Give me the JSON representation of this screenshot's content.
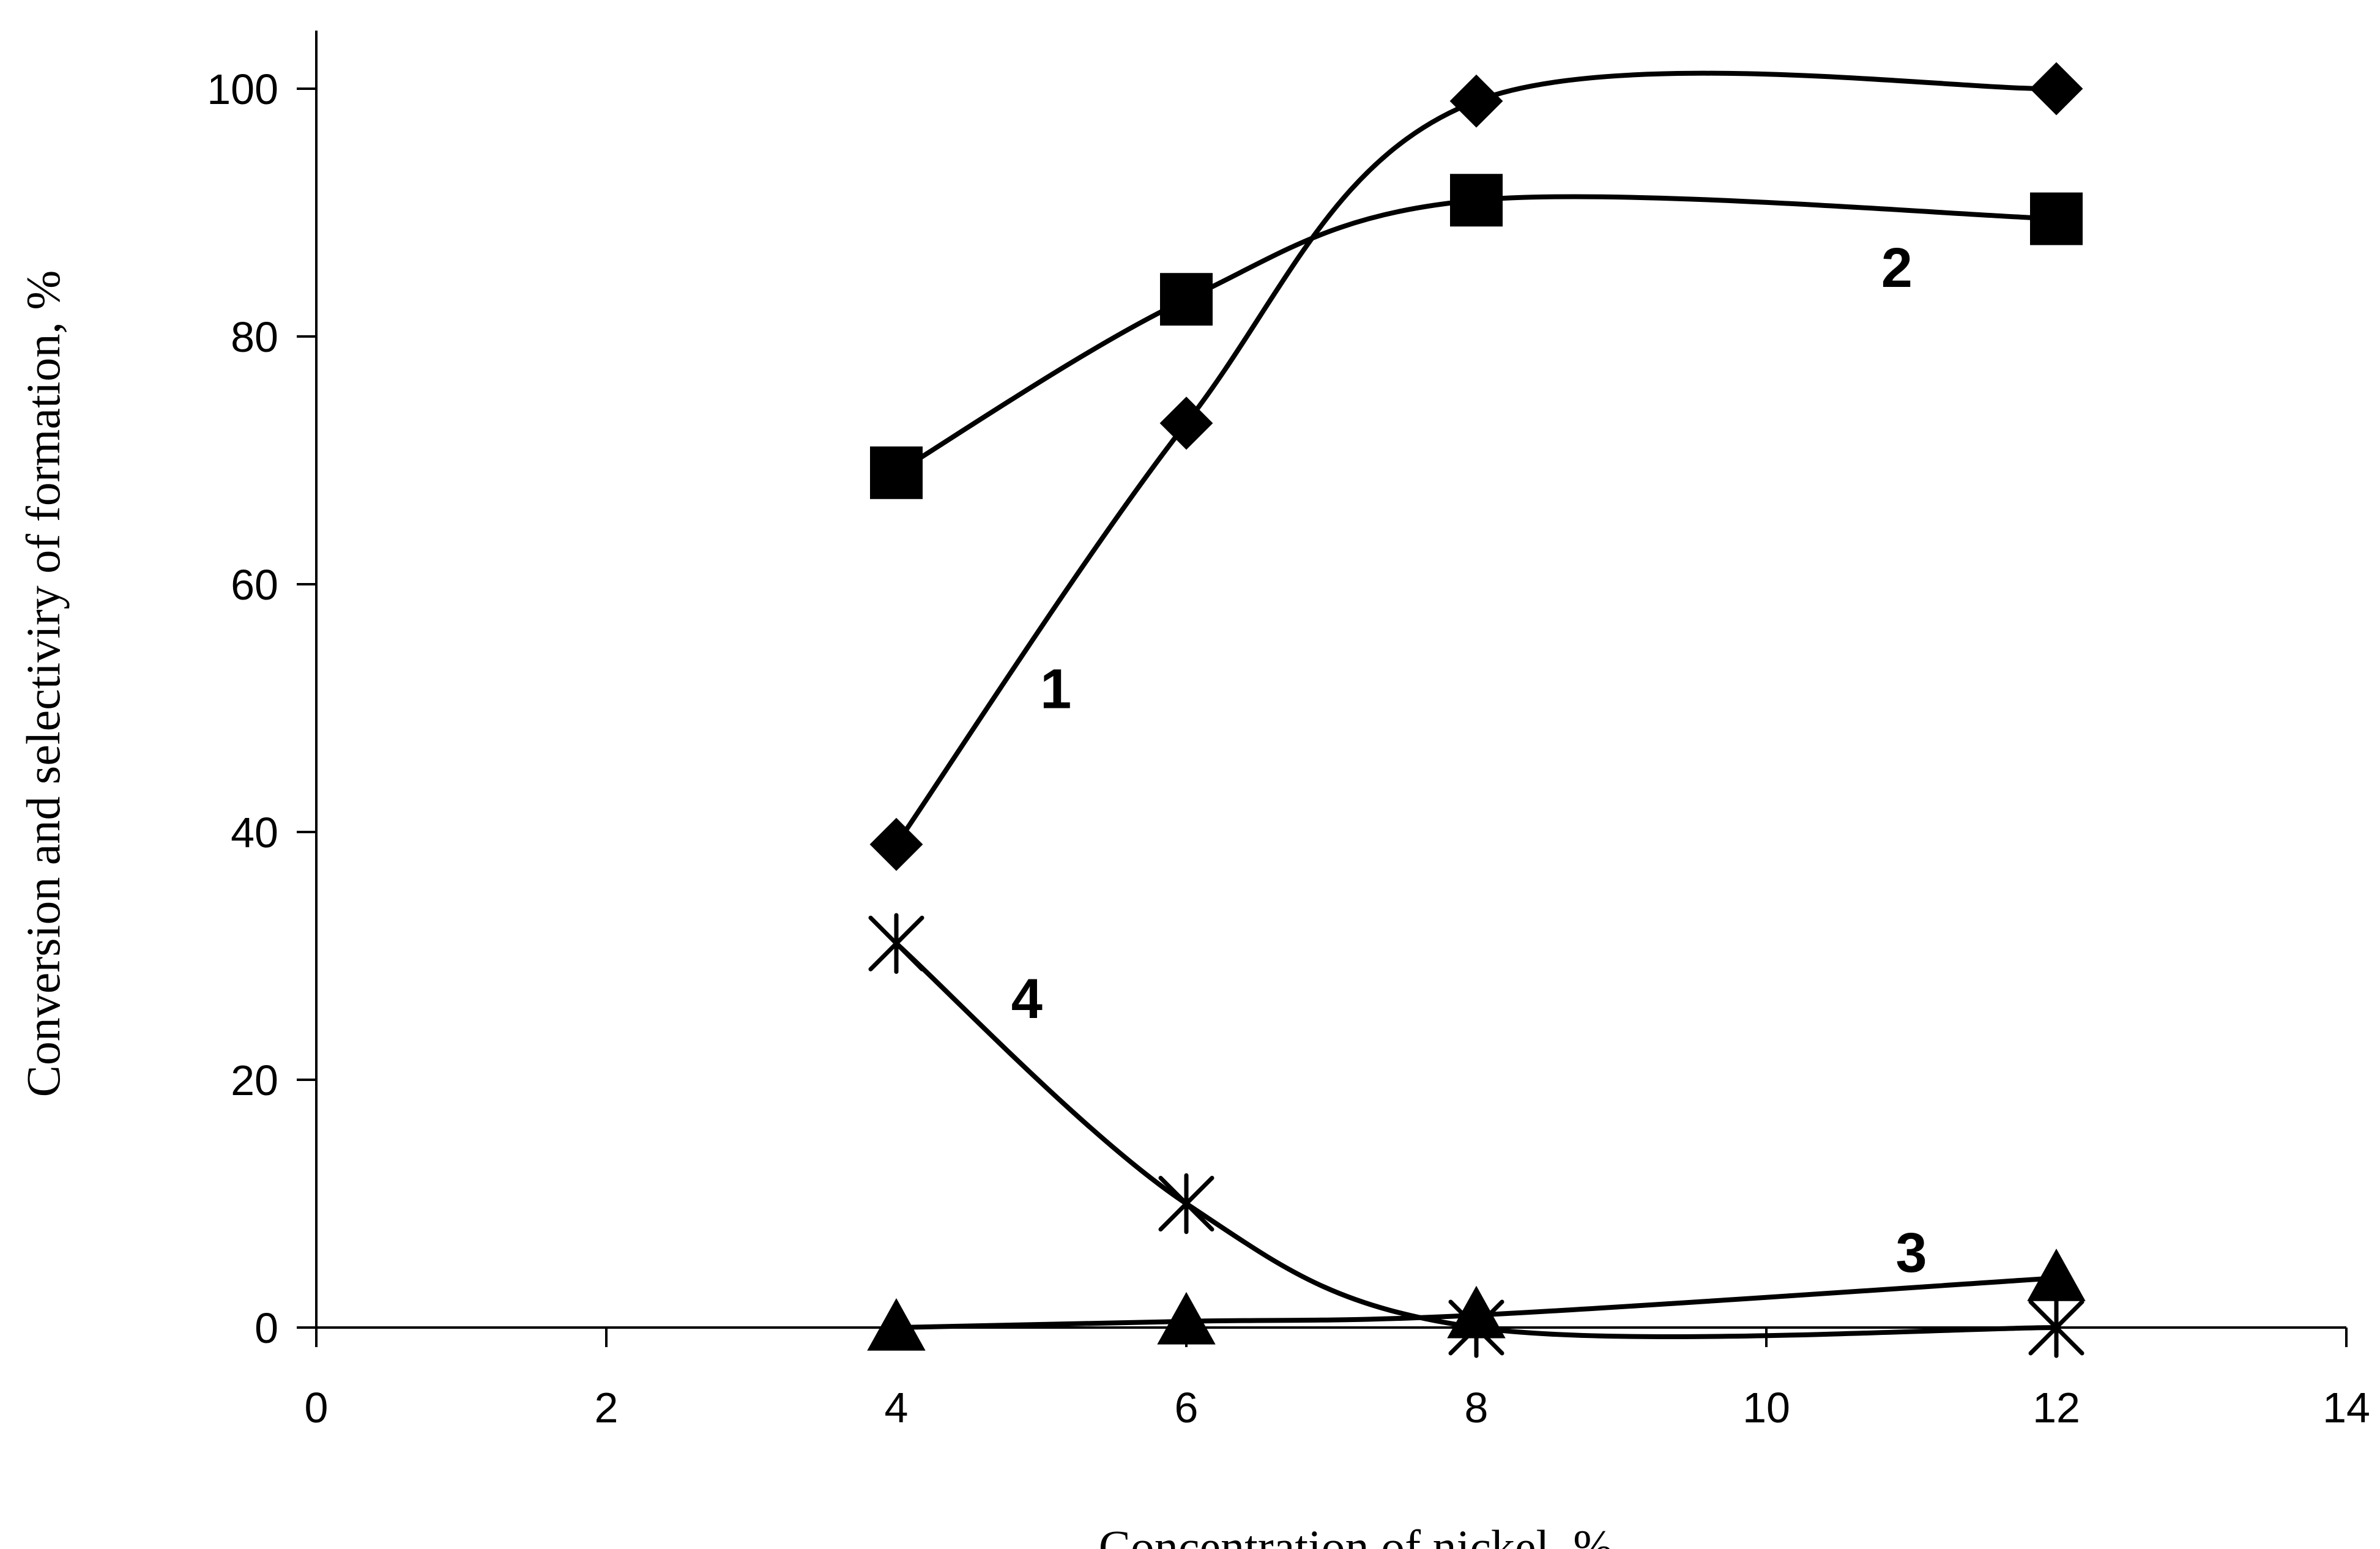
{
  "chart_data": {
    "type": "line",
    "title": "",
    "xlabel": "Concentration of nickel, %",
    "ylabel": "Conversion and selectiviry of formation, %",
    "xlim": [
      0,
      14
    ],
    "ylim": [
      0,
      100
    ],
    "x_ticks": [
      "0",
      "2",
      "4",
      "6",
      "8",
      "10",
      "12",
      "14"
    ],
    "y_ticks": [
      "0",
      "20",
      "40",
      "60",
      "80",
      "100"
    ],
    "grid": false,
    "legend": "none",
    "line_color": "#000000",
    "x": [
      4,
      6,
      8,
      12
    ],
    "series": [
      {
        "name": "1",
        "marker": "diamond",
        "values": [
          39,
          73,
          99,
          100
        ]
      },
      {
        "name": "2",
        "marker": "square",
        "values": [
          69,
          83,
          91,
          89.5
        ]
      },
      {
        "name": "3",
        "marker": "triangle",
        "values": [
          0,
          0.5,
          1,
          4
        ]
      },
      {
        "name": "4",
        "marker": "asterisk",
        "values": [
          31,
          10,
          0,
          0
        ]
      }
    ]
  }
}
